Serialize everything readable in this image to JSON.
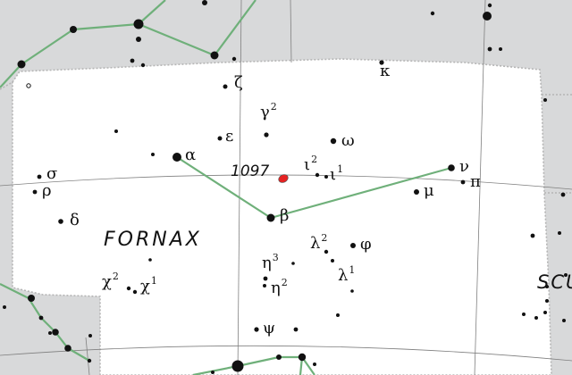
{
  "map": {
    "constellation_label": "FORNAX",
    "neighbor_label": "SCU",
    "galaxy": {
      "label": "1097",
      "marker_color": "#e52222"
    },
    "colors": {
      "outside_background": "#d8d9da",
      "constellation_area": "#ffffff",
      "boundary_line": "#b5b5b5",
      "stick_figure": "#6fb07a",
      "grid_line": "#808080",
      "star": "#111111"
    },
    "star_labels": [
      {
        "id": "kappa",
        "text": "κ"
      },
      {
        "id": "zeta",
        "text": "ζ"
      },
      {
        "id": "gamma2",
        "text": "γ",
        "sup": "2"
      },
      {
        "id": "epsilon",
        "text": "ε"
      },
      {
        "id": "omega",
        "text": "ω"
      },
      {
        "id": "alpha",
        "text": "α"
      },
      {
        "id": "iota2",
        "text": "ι",
        "sup": "2"
      },
      {
        "id": "iota1",
        "text": "ι",
        "sup": "1"
      },
      {
        "id": "nu",
        "text": "ν"
      },
      {
        "id": "pi",
        "text": "π"
      },
      {
        "id": "mu",
        "text": "μ"
      },
      {
        "id": "sigma",
        "text": "σ"
      },
      {
        "id": "rho",
        "text": "ρ"
      },
      {
        "id": "delta",
        "text": "δ"
      },
      {
        "id": "beta",
        "text": "β"
      },
      {
        "id": "lambda2",
        "text": "λ",
        "sup": "2"
      },
      {
        "id": "phi",
        "text": "φ"
      },
      {
        "id": "lambda1",
        "text": "λ",
        "sup": "1"
      },
      {
        "id": "chi2",
        "text": "χ",
        "sup": "2"
      },
      {
        "id": "chi1",
        "text": "χ",
        "sup": "1"
      },
      {
        "id": "eta3",
        "text": "η",
        "sup": "3"
      },
      {
        "id": "eta2",
        "text": "η",
        "sup": "2"
      },
      {
        "id": "psi",
        "text": "ψ"
      }
    ]
  }
}
